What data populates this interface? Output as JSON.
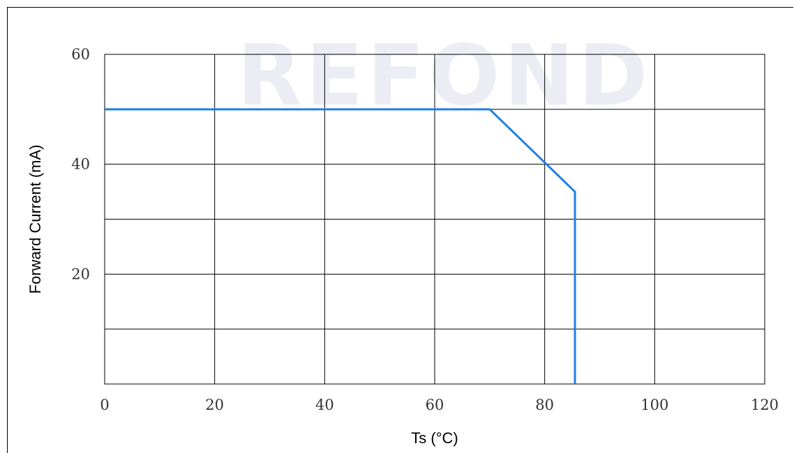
{
  "watermark": {
    "text": "REFOND",
    "color": "#e9e9f3"
  },
  "chart_data": {
    "type": "line",
    "title": "",
    "xlabel": "Ts (°C)",
    "ylabel": "Forward Current (mA)",
    "xlim": [
      0,
      120
    ],
    "ylim": [
      0,
      60
    ],
    "x_ticks": [
      0,
      20,
      40,
      60,
      80,
      100,
      120
    ],
    "y_ticks": [
      20,
      40,
      60
    ],
    "x_gridlines": [
      20,
      40,
      60,
      80,
      100
    ],
    "y_gridlines": [
      10,
      20,
      30,
      40,
      50
    ],
    "grid": true,
    "legend": "none",
    "series": [
      {
        "color": "#1e7fe6",
        "x": [
          0,
          70,
          85.5,
          85.5
        ],
        "y": [
          50,
          50,
          35,
          0
        ]
      }
    ]
  }
}
